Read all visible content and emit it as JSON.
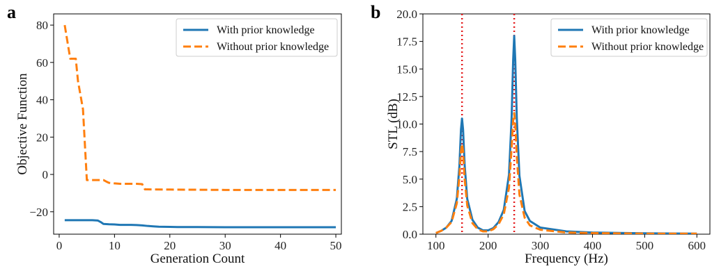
{
  "chart_data": [
    {
      "panel": "a",
      "type": "line",
      "xlabel": "Generation Count",
      "ylabel": "Objective Function",
      "xlim": [
        -1,
        51
      ],
      "ylim": [
        -32,
        86
      ],
      "xticks": [
        0,
        10,
        20,
        30,
        40,
        50
      ],
      "yticks": [
        -20,
        0,
        20,
        40,
        60,
        80
      ],
      "ytick_labels": [
        "−20",
        "0",
        "20",
        "40",
        "60",
        "80"
      ],
      "legend_position": "top-right",
      "series": [
        {
          "name": "With prior knowledge",
          "color": "#1f77b4",
          "style": "solid",
          "x": [
            1,
            2,
            3,
            4,
            5,
            6,
            7,
            7.5,
            8,
            9,
            10,
            11,
            12,
            13,
            14,
            15,
            16,
            17,
            18,
            20,
            22,
            25,
            30,
            35,
            40,
            45,
            50
          ],
          "y": [
            -24.5,
            -24.5,
            -24.5,
            -24.5,
            -24.5,
            -24.5,
            -24.7,
            -25.5,
            -26.5,
            -26.7,
            -26.8,
            -27,
            -27,
            -27,
            -27.1,
            -27.3,
            -27.6,
            -27.8,
            -28,
            -28.1,
            -28.2,
            -28.2,
            -28.3,
            -28.3,
            -28.3,
            -28.3,
            -28.3
          ]
        },
        {
          "name": "Without prior knowledge",
          "color": "#ff7f0e",
          "style": "dashed",
          "x": [
            1,
            2,
            2.4,
            3,
            3.4,
            4,
            4.3,
            5,
            6,
            7,
            8,
            8.5,
            9,
            10,
            11,
            12,
            13,
            14,
            15,
            15.5,
            16,
            20,
            25,
            30,
            35,
            40,
            45,
            50
          ],
          "y": [
            80,
            62,
            62,
            62,
            50,
            40,
            35,
            -3,
            -3,
            -3,
            -3,
            -3.8,
            -4.5,
            -4.8,
            -5,
            -5,
            -5,
            -5,
            -5.2,
            -8,
            -8,
            -8.1,
            -8.2,
            -8.3,
            -8.3,
            -8.3,
            -8.3,
            -8.3
          ]
        }
      ]
    },
    {
      "panel": "b",
      "type": "line",
      "xlabel": "Frequency (Hz)",
      "ylabel": "STL (dB)",
      "xlim": [
        75,
        625
      ],
      "ylim": [
        0,
        20
      ],
      "xticks": [
        100,
        200,
        300,
        400,
        500,
        600
      ],
      "yticks": [
        0,
        2.5,
        5,
        7.5,
        10,
        12.5,
        15,
        17.5,
        20
      ],
      "ytick_labels": [
        "0.0",
        "2.5",
        "5.0",
        "7.5",
        "10.0",
        "12.5",
        "15.0",
        "17.5",
        "20.0"
      ],
      "vertical_markers": [
        150,
        250
      ],
      "marker_color": "#e41a1c",
      "legend_position": "top-right",
      "series": [
        {
          "name": "With prior knowledge",
          "color": "#1f77b4",
          "style": "solid",
          "x": [
            100,
            110,
            120,
            130,
            140,
            145,
            148,
            150,
            152,
            155,
            160,
            170,
            180,
            190,
            200,
            210,
            220,
            230,
            240,
            245,
            248,
            250,
            252,
            255,
            260,
            270,
            280,
            300,
            350,
            400,
            500,
            600
          ],
          "y": [
            0.1,
            0.3,
            0.6,
            1.2,
            3.2,
            6.2,
            9.5,
            10.5,
            9.5,
            6.3,
            3.2,
            1.3,
            0.6,
            0.35,
            0.35,
            0.55,
            1.1,
            2.2,
            5.4,
            10.5,
            15.8,
            18.0,
            15.8,
            10.5,
            5.3,
            2.1,
            1.2,
            0.6,
            0.25,
            0.15,
            0.08,
            0.05
          ]
        },
        {
          "name": "Without prior knowledge",
          "color": "#ff7f0e",
          "style": "dashed",
          "x": [
            100,
            110,
            120,
            130,
            140,
            145,
            148,
            150,
            152,
            155,
            160,
            170,
            180,
            190,
            200,
            210,
            220,
            230,
            240,
            245,
            248,
            250,
            252,
            255,
            260,
            270,
            280,
            300,
            350,
            400,
            500,
            600
          ],
          "y": [
            0.1,
            0.3,
            0.6,
            1.1,
            2.8,
            5.2,
            7.5,
            8.2,
            7.5,
            5.0,
            2.6,
            1.0,
            0.45,
            0.25,
            0.25,
            0.45,
            0.9,
            1.8,
            4.2,
            7.8,
            10.3,
            11.0,
            10.0,
            7.0,
            3.6,
            1.5,
            0.8,
            0.4,
            0.15,
            0.1,
            0.05,
            0.05
          ]
        }
      ]
    }
  ]
}
